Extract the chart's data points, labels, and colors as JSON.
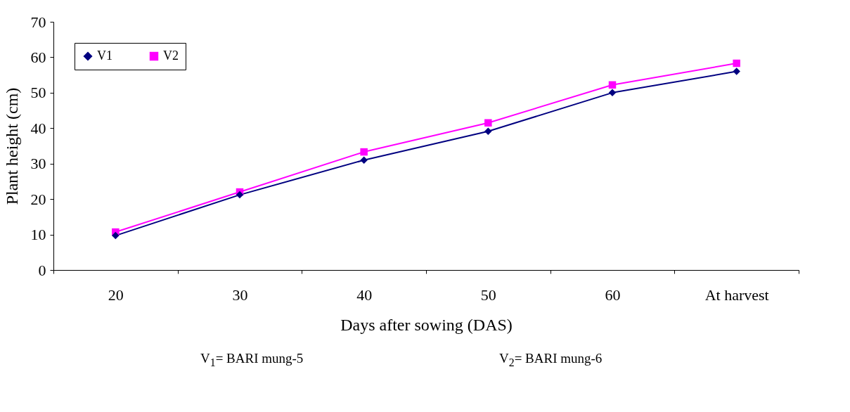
{
  "chart_data": {
    "type": "line",
    "xlabel": "Days after sowing (DAS)",
    "ylabel": "Plant height (cm)",
    "categories": [
      "20",
      "30",
      "40",
      "50",
      "60",
      "At harvest"
    ],
    "series": [
      {
        "name": "V1",
        "color": "#000080",
        "marker": "diamond",
        "values": [
          9.7,
          21.2,
          31.0,
          39.1,
          50.0,
          56.0
        ]
      },
      {
        "name": "V2",
        "color": "#ff00ff",
        "marker": "square",
        "values": [
          10.7,
          22.0,
          33.3,
          41.5,
          52.2,
          58.3
        ]
      }
    ],
    "ylim": [
      0,
      70
    ],
    "yticks": [
      0,
      10,
      20,
      30,
      40,
      50,
      60,
      70
    ],
    "grid": false,
    "legend": "top left",
    "annotations": [
      "V$_{1}$= BARI mung-5",
      "V$_{2}$= BARI mung-6"
    ]
  }
}
